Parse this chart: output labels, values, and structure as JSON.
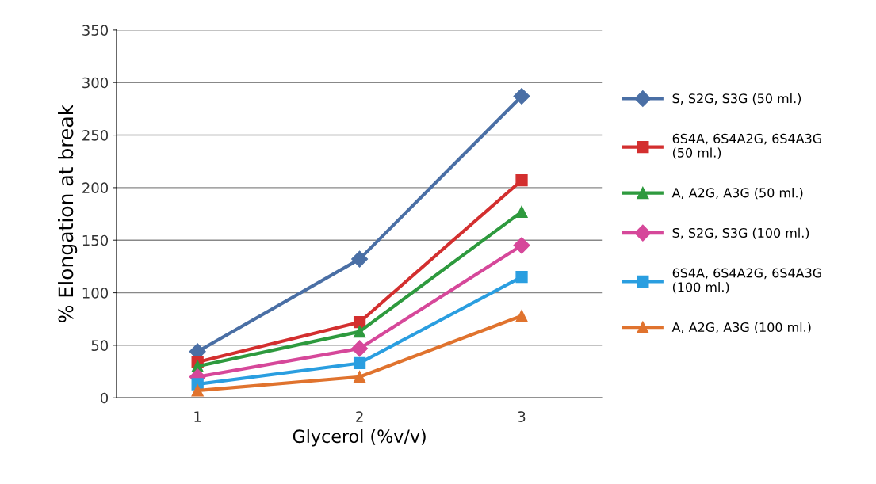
{
  "chart_data": {
    "type": "line",
    "xlabel": "Glycerol (%v/v)",
    "ylabel": "% Elongation at break",
    "categories": [
      "1",
      "2",
      "3"
    ],
    "series": [
      {
        "name": "S, S2G, S3G (50 ml.)",
        "color": "#4a6fa5",
        "marker": "diamond",
        "values": [
          44,
          132,
          287
        ]
      },
      {
        "name": "6S4A, 6S4A2G, 6S4A3G\n(50 ml.)",
        "color": "#d32f2f",
        "marker": "square",
        "values": [
          34,
          72,
          207
        ]
      },
      {
        "name": "A, A2G, A3G (50 ml.)",
        "color": "#2e9a3e",
        "marker": "triangle",
        "values": [
          30,
          63,
          177
        ]
      },
      {
        "name": "S, S2G, S3G (100 ml.)",
        "color": "#d6489a",
        "marker": "diamond",
        "values": [
          20,
          47,
          145
        ]
      },
      {
        "name": "6S4A, 6S4A2G, 6S4A3G\n(100 ml.)",
        "color": "#2a9ee0",
        "marker": "square",
        "values": [
          13,
          33,
          115
        ]
      },
      {
        "name": "A, A2G, A3G (100 ml.)",
        "color": "#e0732e",
        "marker": "triangle",
        "values": [
          7,
          20,
          78
        ]
      }
    ],
    "ylim": [
      0,
      350
    ],
    "yticks": [
      0,
      50,
      100,
      150,
      200,
      250,
      300,
      350
    ],
    "grid": "y",
    "legend": "right",
    "line_style": "solid"
  }
}
